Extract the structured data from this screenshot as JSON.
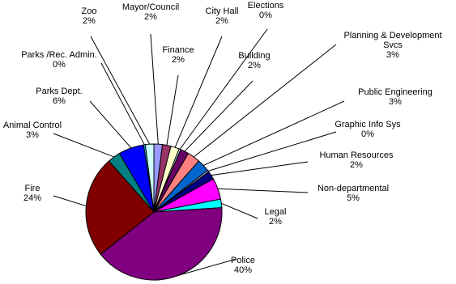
{
  "chart_data": {
    "type": "pie",
    "title": "",
    "legend": "none",
    "slices": [
      {
        "name": "Mayor/Council",
        "value": 2,
        "label": "2%",
        "color": "#9999ff"
      },
      {
        "name": "Finance",
        "value": 2,
        "label": "2%",
        "color": "#993366"
      },
      {
        "name": "City Hall",
        "value": 2,
        "label": "2%",
        "color": "#ffffcc"
      },
      {
        "name": "Elections",
        "value": 0,
        "label": "0%",
        "color": "#ccffff"
      },
      {
        "name": "Building",
        "value": 2,
        "label": "2%",
        "color": "#660066"
      },
      {
        "name": "Planning & Development Svcs",
        "value": 3,
        "label": "3%",
        "color": "#ff8080"
      },
      {
        "name": "Public Engineering",
        "value": 3,
        "label": "3%",
        "color": "#0066cc"
      },
      {
        "name": "Graphic Info Sys",
        "value": 0,
        "label": "0%",
        "color": "#ccccff"
      },
      {
        "name": "Human Resources",
        "value": 2,
        "label": "2%",
        "color": "#000080"
      },
      {
        "name": "Non-departmental",
        "value": 5,
        "label": "5%",
        "color": "#ff00ff"
      },
      {
        "name": "Legal",
        "value": 2,
        "label": "2%",
        "color": "#00ffff"
      },
      {
        "name": "Police",
        "value": 40,
        "label": "40%",
        "color": "#800080"
      },
      {
        "name": "Fire",
        "value": 24,
        "label": "24%",
        "color": "#800000"
      },
      {
        "name": "Animal Control",
        "value": 3,
        "label": "3%",
        "color": "#008080"
      },
      {
        "name": "Parks Dept.",
        "value": 6,
        "label": "6%",
        "color": "#0000ff"
      },
      {
        "name": "Parks /Rec. Admin.",
        "value": 0,
        "label": "0%",
        "color": "#00ccff"
      },
      {
        "name": "Zoo",
        "value": 2,
        "label": "2%",
        "color": "#ccffff"
      }
    ]
  }
}
